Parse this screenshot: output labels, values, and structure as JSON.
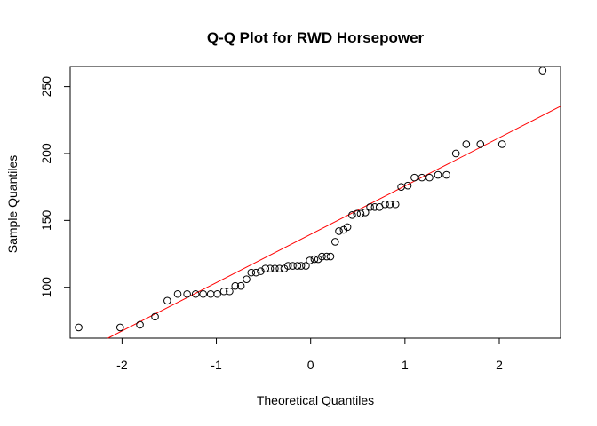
{
  "chart_data": {
    "type": "scatter",
    "title": "Q-Q Plot for RWD Horsepower",
    "xlabel": "Theoretical Quantiles",
    "ylabel": "Sample Quantiles",
    "xlim": [
      -2.55,
      2.65
    ],
    "ylim": [
      62,
      265
    ],
    "xticks": [
      -2,
      -1,
      0,
      1,
      2
    ],
    "xtick_labels": [
      "-2",
      "-1",
      "0",
      "1",
      "2"
    ],
    "yticks": [
      100,
      150,
      200,
      250
    ],
    "ytick_labels": [
      "100",
      "150",
      "200",
      "250"
    ],
    "grid": false,
    "point_color": "#000000",
    "line_color": "#ff0000",
    "reference_line": {
      "intercept": 139.6,
      "slope": 36.1
    },
    "x": [
      -2.46,
      -2.02,
      -1.81,
      -1.65,
      -1.52,
      -1.41,
      -1.31,
      -1.22,
      -1.14,
      -1.06,
      -0.99,
      -0.92,
      -0.86,
      -0.8,
      -0.74,
      -0.68,
      -0.63,
      -0.58,
      -0.53,
      -0.48,
      -0.43,
      -0.38,
      -0.33,
      -0.28,
      -0.24,
      -0.19,
      -0.14,
      -0.1,
      -0.05,
      -0.01,
      0.04,
      0.08,
      0.12,
      0.17,
      0.21,
      0.26,
      0.3,
      0.35,
      0.39,
      0.44,
      0.49,
      0.53,
      0.58,
      0.63,
      0.68,
      0.73,
      0.79,
      0.84,
      0.9,
      0.96,
      1.03,
      1.1,
      1.18,
      1.26,
      1.35,
      1.44,
      1.54,
      1.65,
      1.8,
      2.03,
      2.46
    ],
    "y": [
      70,
      70,
      72,
      78,
      90,
      95,
      95,
      95,
      95,
      95,
      95,
      97,
      97,
      101,
      101,
      106,
      111,
      111,
      112,
      114,
      114,
      114,
      114,
      114,
      116,
      116,
      116,
      116,
      116,
      120,
      121,
      121,
      123,
      123,
      123,
      134,
      142,
      143,
      145,
      154,
      155,
      155,
      156,
      160,
      160,
      160,
      162,
      162,
      162,
      175,
      176,
      182,
      182,
      182,
      184,
      184,
      200,
      207,
      207,
      207,
      262
    ]
  }
}
